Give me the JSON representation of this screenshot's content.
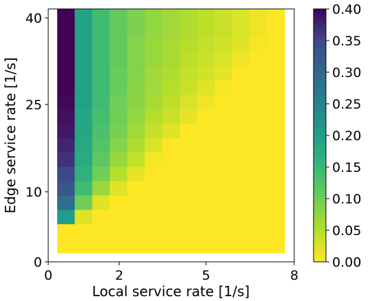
{
  "chart_data": {
    "type": "heatmap",
    "title": "",
    "xlabel": "Local service rate [1/s]",
    "ylabel": "Edge service rate [1/s]",
    "xlim": [
      0,
      8
    ],
    "ylim": [
      0,
      42
    ],
    "x_ticks": [
      "0",
      "2",
      "5",
      "8"
    ],
    "y_ticks": [
      "0",
      "10",
      "25",
      "40"
    ],
    "colormap": "viridis_r",
    "vmin": 0.0,
    "vmax": 0.4,
    "colorbar_ticks": [
      "0.00",
      "0.05",
      "0.10",
      "0.15",
      "0.20",
      "0.25",
      "0.30",
      "0.35",
      "0.40"
    ],
    "column_count": 13,
    "rows_top_to_bottom": [
      [
        0.4,
        0.19,
        0.14,
        0.11,
        0.09,
        0.075,
        0.065,
        0.055,
        0.045,
        0.035,
        0.025,
        0.01,
        0.0
      ],
      [
        0.4,
        0.19,
        0.14,
        0.11,
        0.09,
        0.075,
        0.065,
        0.055,
        0.045,
        0.035,
        0.025,
        0.01,
        0.0
      ],
      [
        0.4,
        0.19,
        0.14,
        0.11,
        0.085,
        0.07,
        0.06,
        0.05,
        0.04,
        0.03,
        0.02,
        0.005,
        0.0
      ],
      [
        0.4,
        0.19,
        0.14,
        0.11,
        0.085,
        0.07,
        0.06,
        0.045,
        0.035,
        0.025,
        0.01,
        0.0,
        0.0
      ],
      [
        0.4,
        0.19,
        0.14,
        0.105,
        0.085,
        0.065,
        0.055,
        0.04,
        0.03,
        0.015,
        0.0,
        0.0,
        0.0
      ],
      [
        0.4,
        0.19,
        0.14,
        0.105,
        0.08,
        0.065,
        0.05,
        0.035,
        0.02,
        0.005,
        0.0,
        0.0,
        0.0
      ],
      [
        0.395,
        0.19,
        0.14,
        0.1,
        0.08,
        0.06,
        0.045,
        0.025,
        0.01,
        0.0,
        0.0,
        0.0,
        0.0
      ],
      [
        0.39,
        0.185,
        0.135,
        0.1,
        0.075,
        0.05,
        0.035,
        0.015,
        0.0,
        0.0,
        0.0,
        0.0,
        0.0
      ],
      [
        0.385,
        0.185,
        0.13,
        0.095,
        0.065,
        0.04,
        0.02,
        0.0,
        0.0,
        0.0,
        0.0,
        0.0,
        0.0
      ],
      [
        0.375,
        0.18,
        0.125,
        0.085,
        0.055,
        0.025,
        0.0,
        0.0,
        0.0,
        0.0,
        0.0,
        0.0,
        0.0
      ],
      [
        0.365,
        0.175,
        0.115,
        0.07,
        0.04,
        0.005,
        0.0,
        0.0,
        0.0,
        0.0,
        0.0,
        0.0,
        0.0
      ],
      [
        0.35,
        0.16,
        0.1,
        0.05,
        0.015,
        0.0,
        0.0,
        0.0,
        0.0,
        0.0,
        0.0,
        0.0,
        0.0
      ],
      [
        0.33,
        0.14,
        0.07,
        0.02,
        0.0,
        0.0,
        0.0,
        0.0,
        0.0,
        0.0,
        0.0,
        0.0,
        0.0
      ],
      [
        0.29,
        0.1,
        0.02,
        0.0,
        0.0,
        0.0,
        0.0,
        0.0,
        0.0,
        0.0,
        0.0,
        0.0,
        0.0
      ],
      [
        0.2,
        0.02,
        0.0,
        0.0,
        0.0,
        0.0,
        0.0,
        0.0,
        0.0,
        0.0,
        0.0,
        0.0,
        0.0
      ],
      [
        0.0,
        0.0,
        0.0,
        0.0,
        0.0,
        0.0,
        0.0,
        0.0,
        0.0,
        0.0,
        0.0,
        0.0,
        0.0
      ],
      [
        0.0,
        0.0,
        0.0,
        0.0,
        0.0,
        0.0,
        0.0,
        0.0,
        0.0,
        0.0,
        0.0,
        0.0,
        0.0
      ]
    ]
  }
}
